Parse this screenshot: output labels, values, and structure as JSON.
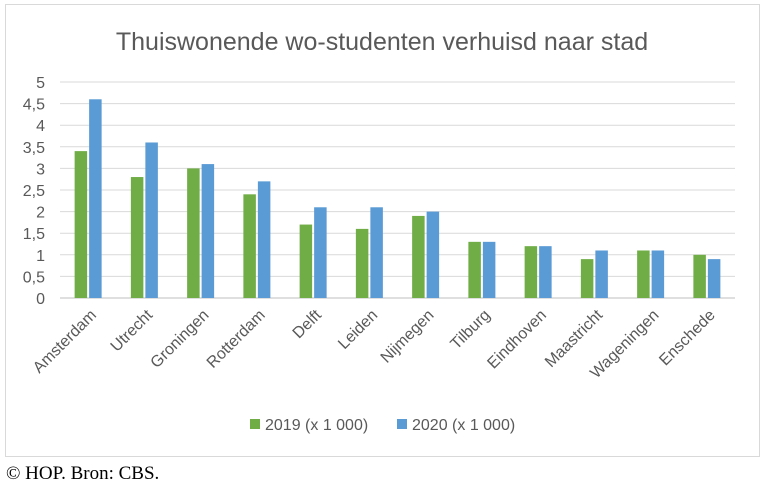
{
  "chart_data": {
    "type": "bar",
    "title": "Thuiswonende wo-studenten verhuisd naar stad",
    "xlabel": "",
    "ylabel": "",
    "ylim": [
      0,
      5
    ],
    "yticks": [
      "0",
      "0,5",
      "1",
      "1,5",
      "2",
      "2,5",
      "3",
      "3,5",
      "4",
      "4,5",
      "5"
    ],
    "grid": true,
    "legend_position": "bottom",
    "categories": [
      "Amsterdam",
      "Utrecht",
      "Groningen",
      "Rotterdam",
      "Delft",
      "Leiden",
      "Nijmegen",
      "Tilburg",
      "Eindhoven",
      "Maastricht",
      "Wageningen",
      "Enschede"
    ],
    "series": [
      {
        "name": "2019 (x 1 000)",
        "color": "#70ad47",
        "values": [
          3.4,
          2.8,
          3.0,
          2.4,
          1.7,
          1.6,
          1.9,
          1.3,
          1.2,
          0.9,
          1.1,
          1.0
        ]
      },
      {
        "name": "2020 (x 1 000)",
        "color": "#5b9bd5",
        "values": [
          4.6,
          3.6,
          3.1,
          2.7,
          2.1,
          2.1,
          2.0,
          1.3,
          1.2,
          1.1,
          1.1,
          0.9
        ]
      }
    ]
  },
  "credit": "© HOP. Bron: CBS."
}
